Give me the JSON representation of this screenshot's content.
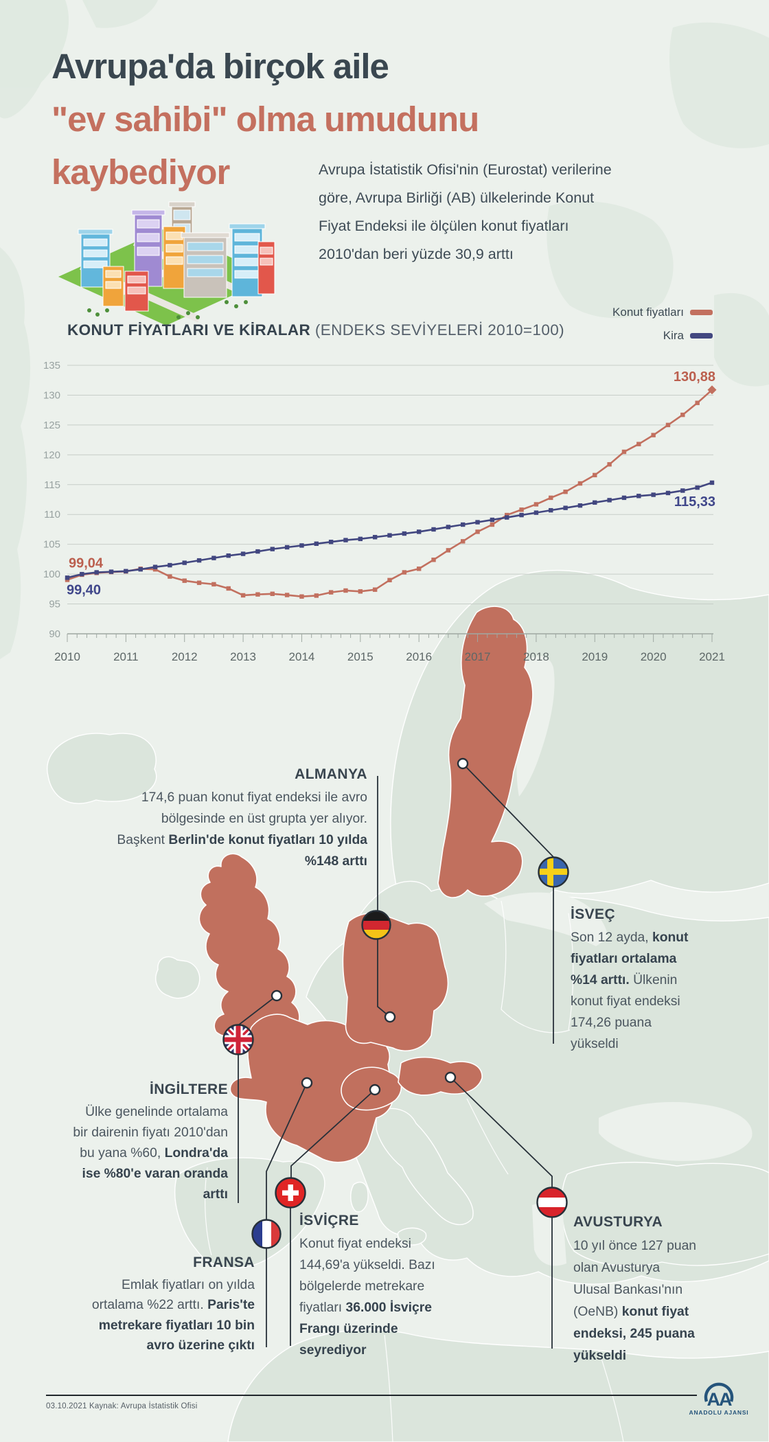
{
  "page": {
    "background": "#ecf1ec",
    "accent_salmon": "#c1705e",
    "accent_navy": "#3f4484",
    "text_dark": "#36434e"
  },
  "header": {
    "title_lines": [
      {
        "text": "Avrupa'da birçok aile",
        "color": "#3a4750"
      },
      {
        "text": "\"ev sahibi\" olma umudunu",
        "color": "#c4705f"
      },
      {
        "text": "kaybediyor",
        "color": "#c4705f"
      }
    ],
    "intro_lines": [
      "Avrupa İstatistik Ofisi'nin (Eurostat) verilerine",
      "göre, Avrupa Birliği (AB) ülkelerinde Konut",
      "Fiyat Endeksi ile ölçülen konut fiyatları",
      "2010'dan beri yüzde 30,9 arttı"
    ]
  },
  "chart_data": {
    "type": "line",
    "title": "KONUT FİYATLARI VE KİRALAR",
    "title_note": "(ENDEKS SEVİYELERİ 2010=100)",
    "ylim": [
      90,
      135
    ],
    "y_ticks": [
      135,
      130,
      125,
      120,
      115,
      110,
      105,
      100,
      95,
      90
    ],
    "x_tick_labels": [
      "2010",
      "2011",
      "2012",
      "2013",
      "2014",
      "2015",
      "2016",
      "2017",
      "2018",
      "2019",
      "2020",
      "2021"
    ],
    "grid": true,
    "legend_position": "top-right",
    "legend": [
      {
        "label": "Konut fiyatları",
        "color": "#c2705f"
      },
      {
        "label": "Kira",
        "color": "#424780"
      }
    ],
    "series": [
      {
        "name": "Konut fiyatları",
        "color": "#c2705f",
        "label_color": "#bb5f4e",
        "start_label": "99,04",
        "end_label": "130,88",
        "values": [
          99.04,
          99.9,
          100.2,
          100.35,
          100.45,
          100.9,
          100.8,
          99.6,
          98.9,
          98.55,
          98.3,
          97.6,
          96.45,
          96.6,
          96.7,
          96.5,
          96.25,
          96.4,
          96.95,
          97.25,
          97.1,
          97.4,
          99.0,
          100.3,
          100.9,
          102.4,
          104.0,
          105.5,
          107.1,
          108.3,
          109.9,
          110.8,
          111.7,
          112.8,
          113.8,
          115.2,
          116.6,
          118.4,
          120.5,
          121.8,
          123.3,
          125.0,
          126.7,
          128.7,
          130.88
        ]
      },
      {
        "name": "Kira",
        "color": "#424780",
        "label_color": "#3f468a",
        "start_label": "99,40",
        "end_label": "115,33",
        "values": [
          99.4,
          100.0,
          100.3,
          100.4,
          100.5,
          100.8,
          101.2,
          101.5,
          101.9,
          102.3,
          102.7,
          103.1,
          103.4,
          103.8,
          104.2,
          104.5,
          104.8,
          105.1,
          105.4,
          105.7,
          105.9,
          106.2,
          106.5,
          106.8,
          107.1,
          107.5,
          107.9,
          108.3,
          108.7,
          109.1,
          109.5,
          109.9,
          110.3,
          110.7,
          111.1,
          111.5,
          112.0,
          112.4,
          112.8,
          113.1,
          113.3,
          113.6,
          114.0,
          114.5,
          115.33
        ]
      }
    ]
  },
  "map": {
    "highlight_color": "#c1705e",
    "callouts": {
      "almanya": {
        "heading": "ALMANYA",
        "lines": [
          "174,6 puan konut fiyat endeksi ile avro",
          "bölgesinde en üst grupta yer alıyor.",
          "Başkent **Berlin'de konut fiyatları 10 yılda**",
          "**%148 arttı**"
        ]
      },
      "isvec": {
        "heading": "İSVEÇ",
        "lines": [
          "Son 12 ayda, **konut**",
          "**fiyatları ortalama**",
          "**%14 arttı.** Ülkenin",
          "konut fiyat endeksi",
          "174,26 puana",
          "yükseldi"
        ]
      },
      "ingiltere": {
        "heading": "İNGİLTERE",
        "lines": [
          "Ülke genelinde ortalama",
          "bir dairenin fiyatı 2010'dan",
          "bu yana %60, **Londra'da**",
          "**ise %80'e varan oranda**",
          "**arttı**"
        ]
      },
      "fransa": {
        "heading": "FRANSA",
        "lines": [
          "Emlak fiyatları on yılda",
          "ortalama %22 arttı. **Paris'te**",
          "**metrekare fiyatları 10 bin**",
          "**avro üzerine çıktı**"
        ]
      },
      "isvicre": {
        "heading": "İSVİÇRE",
        "lines": [
          "Konut fiyat endeksi",
          "144,69'a yükseldi. Bazı",
          "bölgelerde metrekare",
          "fiyatları **36.000 İsviçre**",
          "**Frangı üzerinde**",
          "**seyrediyor**"
        ]
      },
      "avusturya": {
        "heading": "AVUSTURYA",
        "lines": [
          "10 yıl önce 127 puan",
          "olan Avusturya",
          "Ulusal Bankası'nın",
          "(OeNB) **konut fiyat**",
          "**endeksi, 245 puana**",
          "**yükseldi**"
        ]
      }
    }
  },
  "footer": {
    "date": "03.10.2021",
    "source": "Kaynak: Avrupa İstatistik Ofisi",
    "agency": "ANADOLU AJANSI",
    "agency_abbr": "AA"
  }
}
